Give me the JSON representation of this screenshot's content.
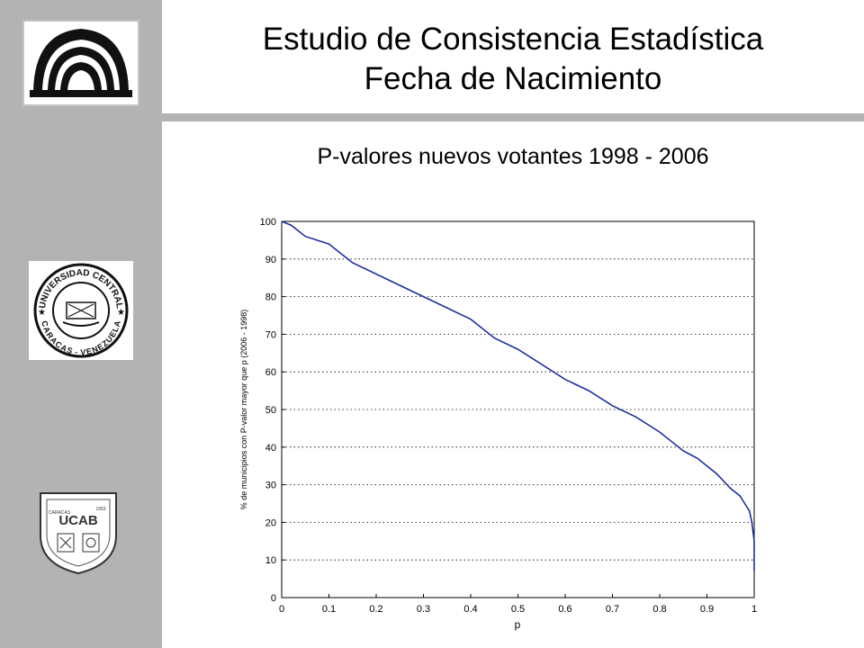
{
  "slide": {
    "title_line1": "Estudio de Consistencia Estadística",
    "title_line2": "Fecha de Nacimiento",
    "subtitle": "P-valores nuevos votantes 1998 - 2006"
  },
  "logos": {
    "ucv_seal_top": "UNIVERSIDAD CENTRAL",
    "ucv_seal_bottom": "CARACAS - VENEZUELA",
    "ucab_initials": "UCAB",
    "ucab_city": "CARACAS",
    "ucab_year": "1953"
  },
  "chart_data": {
    "type": "line",
    "xlabel": "p",
    "ylabel": "% de municipios con P-valor mayor que p (2006 - 1998)",
    "xlim": [
      0,
      1
    ],
    "ylim": [
      0,
      100
    ],
    "xticks": [
      "0",
      "0.1",
      "0.2",
      "0.3",
      "0.4",
      "0.5",
      "0.6",
      "0.7",
      "0.8",
      "0.9",
      "1"
    ],
    "yticks": [
      "0",
      "10",
      "20",
      "30",
      "40",
      "50",
      "60",
      "70",
      "80",
      "90",
      "100"
    ],
    "grid": "horizontal dotted",
    "line_color": "#1f2f9f",
    "series": [
      {
        "x": [
          0,
          0.02,
          0.05,
          0.1,
          0.15,
          0.2,
          0.25,
          0.3,
          0.35,
          0.4,
          0.42,
          0.45,
          0.5,
          0.55,
          0.6,
          0.65,
          0.7,
          0.75,
          0.8,
          0.85,
          0.88,
          0.9,
          0.92,
          0.95,
          0.97,
          0.98,
          0.99,
          0.995,
          1.0,
          1.0
        ],
        "y": [
          100,
          99,
          96,
          94,
          89,
          86,
          83,
          80,
          77,
          74,
          72,
          69,
          66,
          62,
          58,
          55,
          51,
          48,
          44,
          39,
          37,
          35,
          33,
          29,
          27,
          25,
          23,
          20,
          15,
          7
        ]
      }
    ]
  }
}
